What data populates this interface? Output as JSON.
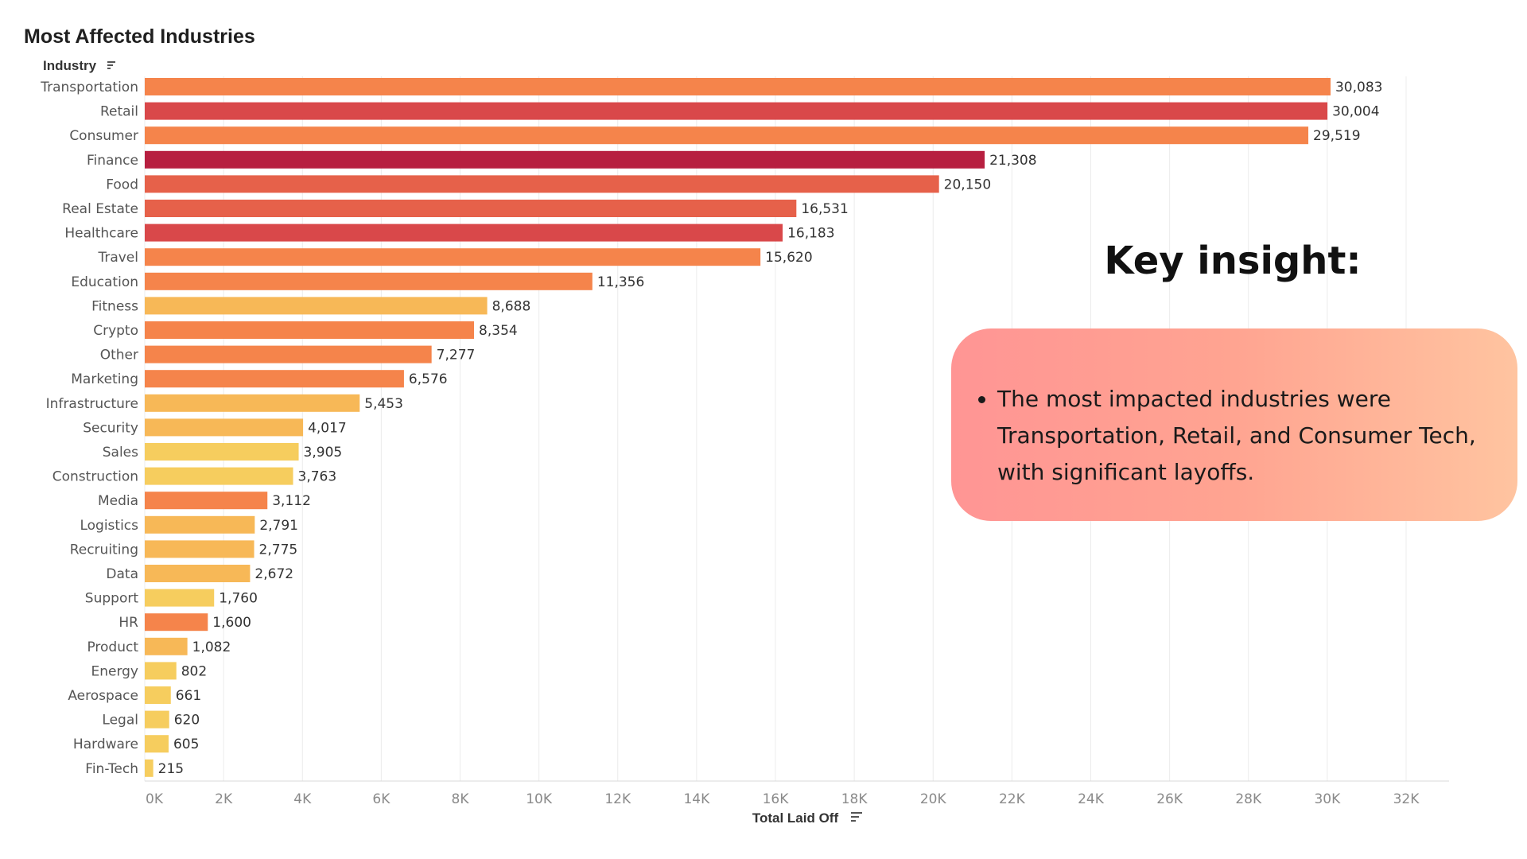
{
  "chart_data": {
    "type": "bar",
    "orientation": "horizontal",
    "title": "Most Affected Industries",
    "ylabel": "Industry",
    "xlabel": "Total Laid Off",
    "xlim": [
      0,
      32000
    ],
    "ticks": [
      "0K",
      "2K",
      "4K",
      "6K",
      "8K",
      "10K",
      "12K",
      "14K",
      "16K",
      "18K",
      "20K",
      "22K",
      "24K",
      "26K",
      "28K",
      "30K",
      "32K"
    ],
    "categories": [
      "Transportation",
      "Retail",
      "Consumer",
      "Finance",
      "Food",
      "Real Estate",
      "Healthcare",
      "Travel",
      "Education",
      "Fitness",
      "Crypto",
      "Other",
      "Marketing",
      "Infrastructure",
      "Security",
      "Sales",
      "Construction",
      "Media",
      "Logistics",
      "Recruiting",
      "Data",
      "Support",
      "HR",
      "Product",
      "Energy",
      "Aerospace",
      "Legal",
      "Hardware",
      "Fin-Tech"
    ],
    "values": [
      30083,
      30004,
      29519,
      21308,
      20150,
      16531,
      16183,
      15620,
      11356,
      8688,
      8354,
      7277,
      6576,
      5453,
      4017,
      3905,
      3763,
      3112,
      2791,
      2775,
      2672,
      1760,
      1600,
      1082,
      802,
      661,
      620,
      605,
      215
    ],
    "value_labels": [
      "30,083",
      "30,004",
      "29,519",
      "21,308",
      "20,150",
      "16,531",
      "16,183",
      "15,620",
      "11,356",
      "8,688",
      "8,354",
      "7,277",
      "6,576",
      "5,453",
      "4,017",
      "3,905",
      "3,763",
      "3,112",
      "2,791",
      "2,775",
      "2,672",
      "1,760",
      "1,600",
      "1,082",
      "802",
      "661",
      "620",
      "605",
      "215"
    ],
    "colors": [
      "#f5844b",
      "#d9484a",
      "#f5844b",
      "#b71f40",
      "#e6614a",
      "#e6614a",
      "#d9484a",
      "#f5844b",
      "#f5844b",
      "#f7b857",
      "#f5844b",
      "#f5844b",
      "#f5844b",
      "#f7b857",
      "#f7b857",
      "#f6cd5e",
      "#f6cd5e",
      "#f5844b",
      "#f7b857",
      "#f7b857",
      "#f7b857",
      "#f6cd5e",
      "#f5844b",
      "#f7b857",
      "#f6cd5e",
      "#f6cd5e",
      "#f6cd5e",
      "#f6cd5e",
      "#f6cd5e"
    ],
    "grid": true,
    "legend": "none"
  },
  "insight": {
    "heading": "Key insight:",
    "bullets": [
      "The most impacted industries were Transportation, Retail, and Consumer Tech, with significant layoffs."
    ]
  }
}
